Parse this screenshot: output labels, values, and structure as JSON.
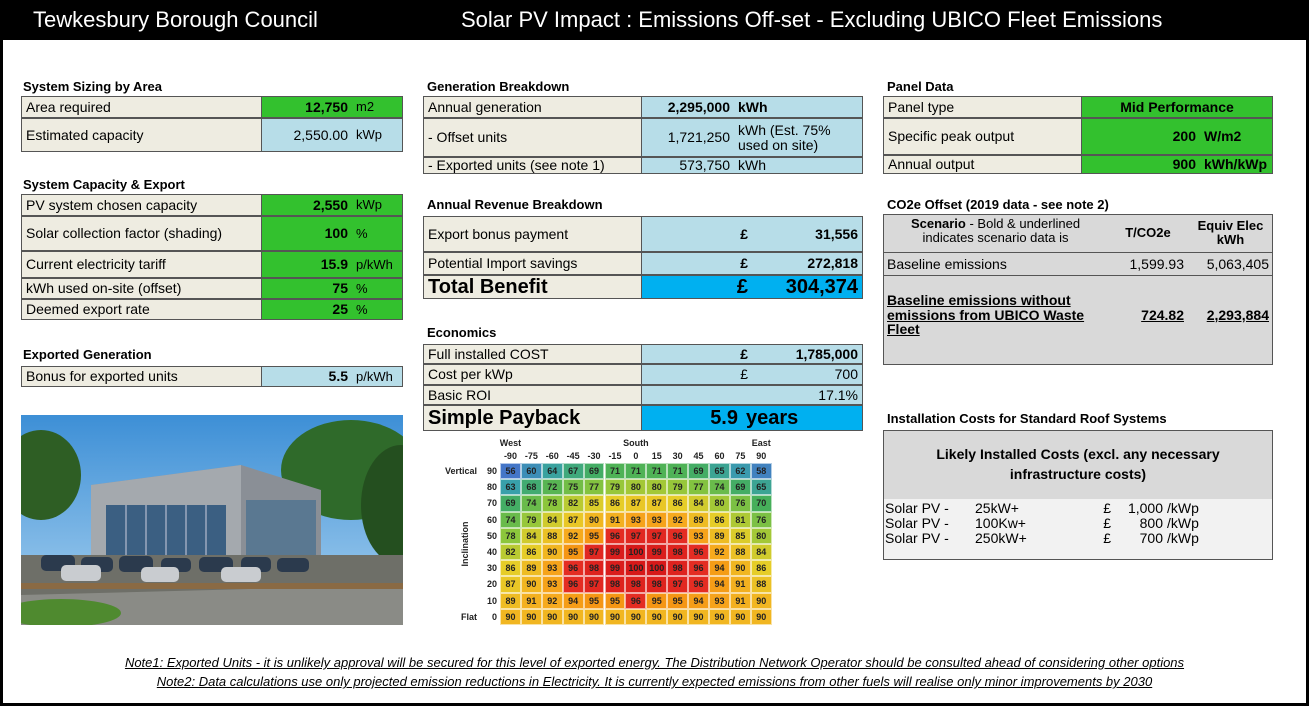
{
  "header": {
    "organisation": "Tewkesbury Borough Council",
    "title": "Solar PV Impact : Emissions Off-set - Excluding UBICO Fleet Emissions"
  },
  "system_sizing": {
    "title": "System Sizing by Area",
    "rows": [
      {
        "label": "Area required",
        "value": "12,750",
        "unit": "m2"
      },
      {
        "label": "Estimated capacity",
        "value": "2,550.00",
        "unit": "kWp"
      }
    ]
  },
  "system_capacity": {
    "title": "System Capacity & Export",
    "rows": [
      {
        "label": "PV system chosen capacity",
        "value": "2,550",
        "unit": "kWp"
      },
      {
        "label": "Solar collection factor (shading)",
        "value": "100",
        "unit": "%"
      },
      {
        "label": "Current electricity tariff",
        "value": "15.9",
        "unit": "p/kWh"
      },
      {
        "label": "kWh used on-site (offset)",
        "value": "75",
        "unit": "%"
      },
      {
        "label": "Deemed export rate",
        "value": "25",
        "unit": "%"
      }
    ]
  },
  "exported_generation": {
    "title": "Exported Generation",
    "rows": [
      {
        "label": "Bonus for exported units",
        "value": "5.5",
        "unit": "p/kWh"
      }
    ]
  },
  "generation_breakdown": {
    "title": "Generation Breakdown",
    "rows": [
      {
        "label": "Annual generation",
        "value": "2,295,000",
        "unit": "kWh"
      },
      {
        "label": "- Offset units",
        "value": "1,721,250",
        "unit": "kWh (Est. 75% used on site)"
      },
      {
        "label": "- Exported units (see note 1)",
        "value": "573,750",
        "unit": "kWh"
      }
    ]
  },
  "revenue_breakdown": {
    "title": "Annual Revenue Breakdown",
    "rows": [
      {
        "label": "Export bonus payment",
        "currency": "£",
        "value": "31,556"
      },
      {
        "label": "Potential Import savings",
        "currency": "£",
        "value": "272,818"
      }
    ],
    "total": {
      "label": "Total Benefit",
      "currency": "£",
      "value": "304,374"
    }
  },
  "economics": {
    "title": "Economics",
    "rows": [
      {
        "label": "Full installed COST",
        "currency": "£",
        "value": "1,785,000"
      },
      {
        "label": "Cost per kWp",
        "currency": "£",
        "value": "700"
      },
      {
        "label": "Basic ROI",
        "value": "17.1%"
      }
    ],
    "payback": {
      "label": "Simple Payback",
      "value": "5.9",
      "unit": "years"
    }
  },
  "panel_data": {
    "title": "Panel Data",
    "rows": [
      {
        "label": "Panel type",
        "value": "Mid Performance"
      },
      {
        "label": "Specific peak output",
        "value": "200",
        "unit": "W/m2"
      },
      {
        "label": "Annual output",
        "value": "900",
        "unit": "kWh/kWp"
      }
    ]
  },
  "co2e_offset": {
    "title": "CO2e Offset (2019 data - see note 2)",
    "columns": [
      {
        "heading": "Scenario",
        "text": "- Bold & underlined indicates scenario data is"
      },
      "T/CO2e",
      "Equiv Elec kWh"
    ],
    "rows": [
      [
        "Baseline emissions",
        "1,599.93",
        "5,063,405"
      ],
      [
        "Baseline emissions without emissions from UBICO Waste Fleet",
        "724.82",
        "2,293,884"
      ]
    ]
  },
  "installation_costs": {
    "title": "Installation Costs for Standard Roof Systems",
    "heading": "Likely Installed Costs (excl. any necessary infrastructure costs)",
    "rows": [
      [
        "Solar PV -",
        "25kW+",
        "£",
        "1,000",
        "/kWp"
      ],
      [
        "Solar PV -",
        "100Kw+",
        "£",
        "800",
        "/kWp"
      ],
      [
        "Solar PV -",
        "250kW+",
        "£",
        "700",
        "/kWp"
      ]
    ]
  },
  "heatmap": {
    "axis_label": "Inclination",
    "direction_labels": [
      "West",
      "South",
      "East"
    ],
    "orientations": [
      -90,
      -75,
      -60,
      -45,
      -30,
      -15,
      0,
      15,
      30,
      45,
      60,
      75,
      90
    ],
    "inclinations": [
      90,
      80,
      70,
      60,
      50,
      40,
      30,
      20,
      10,
      0
    ],
    "inclination_names": [
      "Vertical",
      null,
      null,
      null,
      null,
      null,
      null,
      null,
      null,
      "Flat"
    ],
    "values": [
      [
        56,
        60,
        64,
        67,
        69,
        71,
        71,
        71,
        71,
        69,
        65,
        62,
        58
      ],
      [
        63,
        68,
        72,
        75,
        77,
        79,
        80,
        80,
        79,
        77,
        74,
        69,
        65
      ],
      [
        69,
        74,
        78,
        82,
        85,
        86,
        87,
        87,
        86,
        84,
        80,
        76,
        70
      ],
      [
        74,
        79,
        84,
        87,
        90,
        91,
        93,
        93,
        92,
        89,
        86,
        81,
        76
      ],
      [
        78,
        84,
        88,
        92,
        95,
        96,
        97,
        97,
        96,
        93,
        89,
        85,
        80
      ],
      [
        82,
        86,
        90,
        95,
        97,
        99,
        100,
        99,
        98,
        96,
        92,
        88,
        84
      ],
      [
        86,
        89,
        93,
        96,
        98,
        99,
        100,
        100,
        98,
        96,
        94,
        90,
        86
      ],
      [
        87,
        90,
        93,
        96,
        97,
        98,
        98,
        98,
        97,
        96,
        94,
        91,
        88
      ],
      [
        89,
        91,
        92,
        94,
        95,
        95,
        96,
        95,
        95,
        94,
        93,
        91,
        90
      ],
      [
        90,
        90,
        90,
        90,
        90,
        90,
        90,
        90,
        90,
        90,
        90,
        90,
        90
      ]
    ]
  },
  "notes": [
    "Note1: Exported Units - it is unlikely approval will be secured for this level of exported energy. The Distribution Network Operator should be consulted ahead of considering other options",
    "Note2: Data calculations use only projected emission reductions in Electricity.  It is currently expected emissions from other fuels will realise only minor improvements by 2030"
  ]
}
